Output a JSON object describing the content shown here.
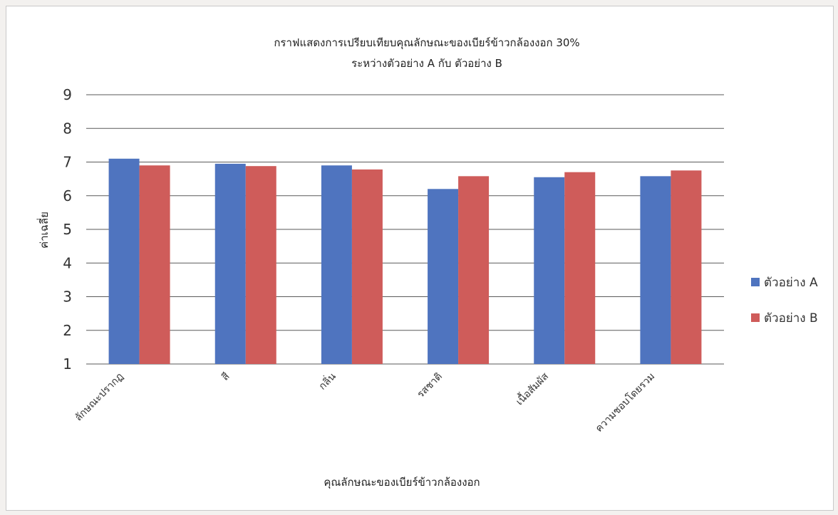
{
  "colors": {
    "series_a": "#4f74bf",
    "series_b": "#cf5c5a",
    "gridline": "#5a5a5a",
    "background": "#ffffff"
  },
  "chart_data": {
    "type": "bar",
    "title": "กราฟแสดงการเปรียบเทียบคุณลักษณะของเบียร์ข้าวกล้องงอก 30%",
    "subtitle": "ระหว่างตัวอย่าง A กับ ตัวอย่าง B",
    "xlabel": "คุณลักษณะของเบียร์ข้าวกล้องงอก",
    "ylabel": "ค่าเฉลี่ย",
    "ylim": [
      1,
      9
    ],
    "yticks": [
      1,
      2,
      3,
      4,
      5,
      6,
      7,
      8,
      9
    ],
    "grid": true,
    "legend_position": "right",
    "categories": [
      "ลักษณะปรากฏ",
      "สี",
      "กลิ่น",
      "รสชาติ",
      "เนื้อสัมผัส",
      "ความชอบโดยรวม"
    ],
    "series": [
      {
        "name": "ตัวอย่าง A",
        "values": [
          7.1,
          6.95,
          6.9,
          6.2,
          6.55,
          6.58
        ]
      },
      {
        "name": "ตัวอย่าง B",
        "values": [
          6.9,
          6.88,
          6.78,
          6.58,
          6.7,
          6.75
        ]
      }
    ]
  }
}
